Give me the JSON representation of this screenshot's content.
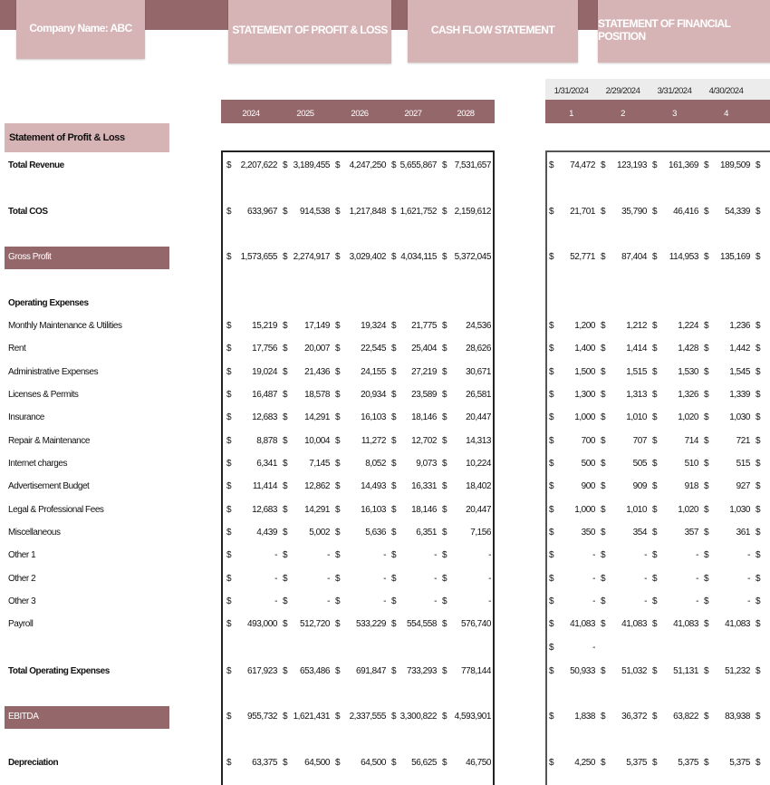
{
  "colors": {
    "accent_dark": "#94686b",
    "accent_light": "#d6b4b6"
  },
  "nav": {
    "company": "Company Name: ABC",
    "tabs": [
      "STATEMENT OF PROFIT & LOSS",
      "CASH FLOW STATEMENT",
      "STATEMENT OF FINANCIAL POSITION"
    ]
  },
  "annual_headers": [
    "2024",
    "2025",
    "2026",
    "2027",
    "2028"
  ],
  "monthly_dates": [
    "1/31/2024",
    "2/29/2024",
    "3/31/2024",
    "4/30/2024"
  ],
  "monthly_numbers": [
    "1",
    "2",
    "3",
    "4"
  ],
  "section_title": "Statement of Profit & Loss",
  "currency": "$",
  "rows": [
    {
      "label": "Total Revenue",
      "style": "bold",
      "annual": [
        "2,207,622",
        "3,189,455",
        "4,247,250",
        "5,655,867",
        "7,531,657"
      ],
      "monthly": [
        "74,472",
        "123,193",
        "161,369",
        "189,509"
      ]
    },
    {
      "label": "Total COS",
      "style": "bold",
      "annual": [
        "633,967",
        "914,538",
        "1,217,848",
        "1,621,752",
        "2,159,612"
      ],
      "monthly": [
        "21,701",
        "35,790",
        "46,416",
        "54,339"
      ]
    },
    {
      "label": "Gross Profit",
      "style": "bar",
      "annual": [
        "1,573,655",
        "2,274,917",
        "3,029,402",
        "4,034,115",
        "5,372,045"
      ],
      "monthly": [
        "52,771",
        "87,404",
        "114,953",
        "135,169"
      ]
    },
    {
      "label": "Operating Expenses",
      "style": "bold",
      "annual": null,
      "monthly": null
    },
    {
      "label": "Monthly Maintenance & Utilities",
      "annual": [
        "15,219",
        "17,149",
        "19,324",
        "21,775",
        "24,536"
      ],
      "monthly": [
        "1,200",
        "1,212",
        "1,224",
        "1,236"
      ]
    },
    {
      "label": "Rent",
      "annual": [
        "17,756",
        "20,007",
        "22,545",
        "25,404",
        "28,626"
      ],
      "monthly": [
        "1,400",
        "1,414",
        "1,428",
        "1,442"
      ]
    },
    {
      "label": "Administrative Expenses",
      "annual": [
        "19,024",
        "21,436",
        "24,155",
        "27,219",
        "30,671"
      ],
      "monthly": [
        "1,500",
        "1,515",
        "1,530",
        "1,545"
      ]
    },
    {
      "label": "Licenses & Permits",
      "annual": [
        "16,487",
        "18,578",
        "20,934",
        "23,589",
        "26,581"
      ],
      "monthly": [
        "1,300",
        "1,313",
        "1,326",
        "1,339"
      ]
    },
    {
      "label": "Insurance",
      "annual": [
        "12,683",
        "14,291",
        "16,103",
        "18,146",
        "20,447"
      ],
      "monthly": [
        "1,000",
        "1,010",
        "1,020",
        "1,030"
      ]
    },
    {
      "label": "Repair & Maintenance",
      "annual": [
        "8,878",
        "10,004",
        "11,272",
        "12,702",
        "14,313"
      ],
      "monthly": [
        "700",
        "707",
        "714",
        "721"
      ]
    },
    {
      "label": "Internet charges",
      "annual": [
        "6,341",
        "7,145",
        "8,052",
        "9,073",
        "10,224"
      ],
      "monthly": [
        "500",
        "505",
        "510",
        "515"
      ]
    },
    {
      "label": "Advertisement Budget",
      "annual": [
        "11,414",
        "12,862",
        "14,493",
        "16,331",
        "18,402"
      ],
      "monthly": [
        "900",
        "909",
        "918",
        "927"
      ]
    },
    {
      "label": "Legal & Professional Fees",
      "annual": [
        "12,683",
        "14,291",
        "16,103",
        "18,146",
        "20,447"
      ],
      "monthly": [
        "1,000",
        "1,010",
        "1,020",
        "1,030"
      ]
    },
    {
      "label": "Miscellaneous",
      "annual": [
        "4,439",
        "5,002",
        "5,636",
        "6,351",
        "7,156"
      ],
      "monthly": [
        "350",
        "354",
        "357",
        "361"
      ]
    },
    {
      "label": "Other 1",
      "annual": [
        "-",
        "-",
        "-",
        "-",
        "-"
      ],
      "monthly": [
        "-",
        "-",
        "-",
        "-"
      ]
    },
    {
      "label": "Other 2",
      "annual": [
        "-",
        "-",
        "-",
        "-",
        "-"
      ],
      "monthly": [
        "-",
        "-",
        "-",
        "-"
      ]
    },
    {
      "label": "Other 3",
      "annual": [
        "-",
        "-",
        "-",
        "-",
        "-"
      ],
      "monthly": [
        "-",
        "-",
        "-",
        "-"
      ]
    },
    {
      "label": "Payroll",
      "annual": [
        "493,000",
        "512,720",
        "533,229",
        "554,558",
        "576,740"
      ],
      "monthly": [
        "41,083",
        "41,083",
        "41,083",
        "41,083"
      ]
    },
    {
      "label": "",
      "annual": null,
      "monthly": [
        "-"
      ],
      "monthly_only_first": true
    },
    {
      "label": "Total Operating Expenses",
      "style": "bold",
      "annual": [
        "617,923",
        "653,486",
        "691,847",
        "733,293",
        "778,144"
      ],
      "monthly": [
        "50,933",
        "51,032",
        "51,131",
        "51,232"
      ]
    },
    {
      "label": "EBITDA",
      "style": "bar",
      "annual": [
        "955,732",
        "1,621,431",
        "2,337,555",
        "3,300,822",
        "4,593,901"
      ],
      "monthly": [
        "1,838",
        "36,372",
        "63,822",
        "83,938"
      ]
    },
    {
      "label": "Depreciation",
      "style": "bold",
      "annual": [
        "63,375",
        "64,500",
        "64,500",
        "56,625",
        "46,750"
      ],
      "monthly": [
        "4,250",
        "5,375",
        "5,375",
        "5,375"
      ]
    }
  ]
}
